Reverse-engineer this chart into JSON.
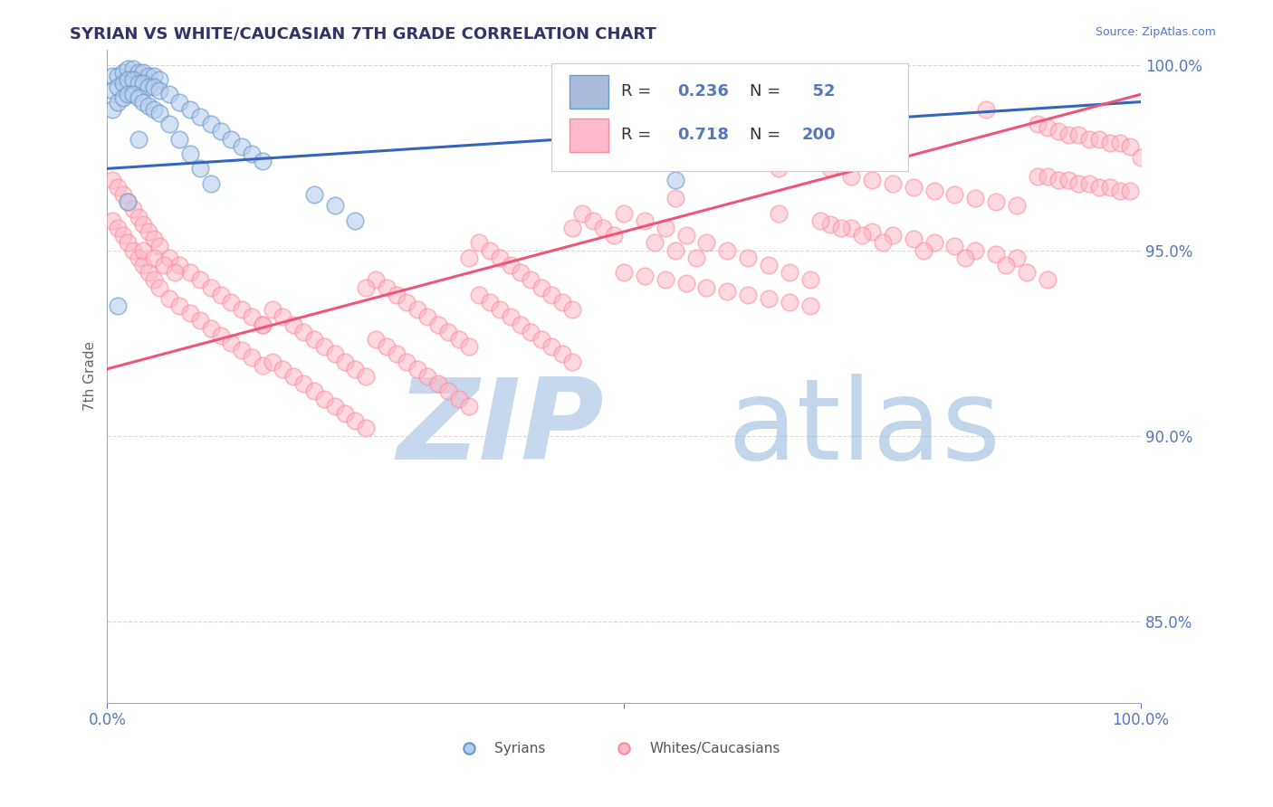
{
  "title": "SYRIAN VS WHITE/CAUCASIAN 7TH GRADE CORRELATION CHART",
  "source": "Source: ZipAtlas.com",
  "ylabel": "7th Grade",
  "xlim": [
    0.0,
    1.0
  ],
  "ylim": [
    0.828,
    1.004
  ],
  "yticks_right": [
    0.85,
    0.9,
    0.95,
    1.0
  ],
  "yticklabels_right": [
    "85.0%",
    "90.0%",
    "95.0%",
    "100.0%"
  ],
  "blue_R": 0.236,
  "blue_N": 52,
  "pink_R": 0.718,
  "pink_N": 200,
  "blue_color": "#6699CC",
  "pink_color": "#FF8899",
  "blue_line_color": "#3366BB",
  "pink_line_color": "#EE5577",
  "grid_color": "#CCCCCC",
  "title_color": "#333366",
  "axis_color": "#5577BB",
  "watermark_zip_color": "#C8D8EC",
  "watermark_atlas_color": "#99BBDD",
  "blue_line_x": [
    0.0,
    1.0
  ],
  "blue_line_y": [
    0.972,
    0.99
  ],
  "pink_line_x": [
    0.0,
    1.0
  ],
  "pink_line_y": [
    0.918,
    0.992
  ],
  "blue_scatter_x": [
    0.005,
    0.01,
    0.015,
    0.02,
    0.025,
    0.03,
    0.035,
    0.04,
    0.045,
    0.05,
    0.005,
    0.01,
    0.015,
    0.02,
    0.025,
    0.03,
    0.035,
    0.04,
    0.045,
    0.05,
    0.005,
    0.01,
    0.015,
    0.02,
    0.025,
    0.03,
    0.035,
    0.04,
    0.045,
    0.05,
    0.06,
    0.07,
    0.08,
    0.09,
    0.1,
    0.11,
    0.12,
    0.13,
    0.14,
    0.15,
    0.06,
    0.07,
    0.08,
    0.09,
    0.1,
    0.2,
    0.22,
    0.24,
    0.55,
    0.03,
    0.02,
    0.01
  ],
  "blue_scatter_y": [
    0.997,
    0.997,
    0.998,
    0.999,
    0.999,
    0.998,
    0.998,
    0.997,
    0.997,
    0.996,
    0.993,
    0.994,
    0.995,
    0.996,
    0.996,
    0.995,
    0.995,
    0.994,
    0.994,
    0.993,
    0.988,
    0.99,
    0.991,
    0.992,
    0.992,
    0.991,
    0.99,
    0.989,
    0.988,
    0.987,
    0.992,
    0.99,
    0.988,
    0.986,
    0.984,
    0.982,
    0.98,
    0.978,
    0.976,
    0.974,
    0.984,
    0.98,
    0.976,
    0.972,
    0.968,
    0.965,
    0.962,
    0.958,
    0.969,
    0.98,
    0.963,
    0.935
  ],
  "pink_scatter_x": [
    0.005,
    0.01,
    0.015,
    0.02,
    0.025,
    0.03,
    0.035,
    0.04,
    0.045,
    0.05,
    0.005,
    0.01,
    0.015,
    0.02,
    0.025,
    0.03,
    0.035,
    0.04,
    0.045,
    0.05,
    0.06,
    0.07,
    0.08,
    0.09,
    0.1,
    0.11,
    0.12,
    0.13,
    0.14,
    0.15,
    0.06,
    0.07,
    0.08,
    0.09,
    0.1,
    0.11,
    0.12,
    0.13,
    0.14,
    0.15,
    0.16,
    0.17,
    0.18,
    0.19,
    0.2,
    0.21,
    0.22,
    0.23,
    0.24,
    0.25,
    0.16,
    0.17,
    0.18,
    0.19,
    0.2,
    0.21,
    0.22,
    0.23,
    0.24,
    0.25,
    0.26,
    0.27,
    0.28,
    0.29,
    0.3,
    0.31,
    0.32,
    0.33,
    0.34,
    0.35,
    0.26,
    0.27,
    0.28,
    0.29,
    0.3,
    0.31,
    0.32,
    0.33,
    0.34,
    0.35,
    0.36,
    0.37,
    0.38,
    0.39,
    0.4,
    0.41,
    0.42,
    0.43,
    0.44,
    0.45,
    0.36,
    0.37,
    0.38,
    0.39,
    0.4,
    0.41,
    0.42,
    0.43,
    0.44,
    0.45,
    0.5,
    0.52,
    0.54,
    0.56,
    0.58,
    0.6,
    0.62,
    0.64,
    0.66,
    0.68,
    0.5,
    0.52,
    0.54,
    0.56,
    0.58,
    0.6,
    0.62,
    0.64,
    0.66,
    0.68,
    0.7,
    0.72,
    0.74,
    0.76,
    0.78,
    0.8,
    0.82,
    0.84,
    0.86,
    0.88,
    0.7,
    0.72,
    0.74,
    0.76,
    0.78,
    0.8,
    0.82,
    0.84,
    0.86,
    0.88,
    0.9,
    0.91,
    0.92,
    0.93,
    0.94,
    0.95,
    0.96,
    0.97,
    0.98,
    0.99,
    0.9,
    0.91,
    0.92,
    0.93,
    0.94,
    0.95,
    0.96,
    0.97,
    0.98,
    0.99,
    0.46,
    0.47,
    0.48,
    0.49,
    0.53,
    0.55,
    0.57,
    0.65,
    0.69,
    0.71,
    0.73,
    0.75,
    0.79,
    0.83,
    0.87,
    0.89,
    0.91,
    1.0,
    0.035,
    0.045,
    0.055,
    0.065,
    0.15,
    0.25,
    0.35,
    0.45,
    0.55,
    0.65,
    0.75,
    0.85
  ],
  "pink_scatter_y": [
    0.969,
    0.967,
    0.965,
    0.963,
    0.961,
    0.959,
    0.957,
    0.955,
    0.953,
    0.951,
    0.958,
    0.956,
    0.954,
    0.952,
    0.95,
    0.948,
    0.946,
    0.944,
    0.942,
    0.94,
    0.948,
    0.946,
    0.944,
    0.942,
    0.94,
    0.938,
    0.936,
    0.934,
    0.932,
    0.93,
    0.937,
    0.935,
    0.933,
    0.931,
    0.929,
    0.927,
    0.925,
    0.923,
    0.921,
    0.919,
    0.934,
    0.932,
    0.93,
    0.928,
    0.926,
    0.924,
    0.922,
    0.92,
    0.918,
    0.916,
    0.92,
    0.918,
    0.916,
    0.914,
    0.912,
    0.91,
    0.908,
    0.906,
    0.904,
    0.902,
    0.942,
    0.94,
    0.938,
    0.936,
    0.934,
    0.932,
    0.93,
    0.928,
    0.926,
    0.924,
    0.926,
    0.924,
    0.922,
    0.92,
    0.918,
    0.916,
    0.914,
    0.912,
    0.91,
    0.908,
    0.952,
    0.95,
    0.948,
    0.946,
    0.944,
    0.942,
    0.94,
    0.938,
    0.936,
    0.934,
    0.938,
    0.936,
    0.934,
    0.932,
    0.93,
    0.928,
    0.926,
    0.924,
    0.922,
    0.92,
    0.96,
    0.958,
    0.956,
    0.954,
    0.952,
    0.95,
    0.948,
    0.946,
    0.944,
    0.942,
    0.944,
    0.943,
    0.942,
    0.941,
    0.94,
    0.939,
    0.938,
    0.937,
    0.936,
    0.935,
    0.972,
    0.97,
    0.969,
    0.968,
    0.967,
    0.966,
    0.965,
    0.964,
    0.963,
    0.962,
    0.957,
    0.956,
    0.955,
    0.954,
    0.953,
    0.952,
    0.951,
    0.95,
    0.949,
    0.948,
    0.984,
    0.983,
    0.982,
    0.981,
    0.981,
    0.98,
    0.98,
    0.979,
    0.979,
    0.978,
    0.97,
    0.97,
    0.969,
    0.969,
    0.968,
    0.968,
    0.967,
    0.967,
    0.966,
    0.966,
    0.96,
    0.958,
    0.956,
    0.954,
    0.952,
    0.95,
    0.948,
    0.96,
    0.958,
    0.956,
    0.954,
    0.952,
    0.95,
    0.948,
    0.946,
    0.944,
    0.942,
    0.975,
    0.95,
    0.948,
    0.946,
    0.944,
    0.93,
    0.94,
    0.948,
    0.956,
    0.964,
    0.972,
    0.98,
    0.988
  ]
}
